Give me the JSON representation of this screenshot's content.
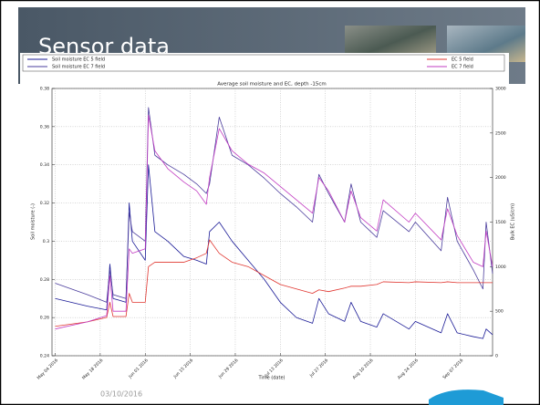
{
  "slide": {
    "title": "Sensor data",
    "date": "03/10/2016"
  },
  "chart_data": {
    "type": "line",
    "title": "Average soil moisture and EC, depth -15cm",
    "xlabel": "Time (date)",
    "ylabel": "Soil moisture (-)",
    "y2label": "Bulk EC (uS/cm)",
    "x": [
      0,
      10,
      16,
      17,
      18,
      22,
      23,
      24,
      28,
      29,
      31,
      35,
      40,
      44,
      47,
      48,
      51,
      55,
      60,
      65,
      70,
      75,
      80,
      82,
      85,
      90,
      92,
      95,
      100,
      102,
      110,
      112,
      120,
      122,
      125,
      130,
      133,
      134,
      136
    ],
    "xlim": [
      -1,
      136
    ],
    "xticks": [
      {
        "value": 0,
        "label": "May 04 2016"
      },
      {
        "value": 14,
        "label": "May 18 2016"
      },
      {
        "value": 28,
        "label": "Jun 01 2016"
      },
      {
        "value": 42,
        "label": "Jun 15 2016"
      },
      {
        "value": 56,
        "label": "Jun 29 2016"
      },
      {
        "value": 70,
        "label": "Jul 13 2016"
      },
      {
        "value": 84,
        "label": "Jul 27 2016"
      },
      {
        "value": 98,
        "label": "Aug 10 2016"
      },
      {
        "value": 112,
        "label": "Aug 24 2016"
      },
      {
        "value": 126,
        "label": "Sep 07 2016"
      }
    ],
    "ylim": [
      0.24,
      0.38
    ],
    "yticks": [
      0.24,
      0.26,
      0.28,
      0.3,
      0.32,
      0.34,
      0.36,
      0.38
    ],
    "y2lim": [
      0,
      3000
    ],
    "y2ticks": [
      0,
      500,
      1000,
      1500,
      2000,
      2500,
      3000
    ],
    "grid": true,
    "series": [
      {
        "name": "Soil moisture EC 5 field",
        "color": "#1a1a96",
        "values": [
          0.27,
          0.266,
          0.264,
          0.288,
          0.27,
          0.268,
          0.32,
          0.3,
          0.29,
          0.34,
          0.305,
          0.3,
          0.292,
          0.29,
          0.288,
          0.305,
          0.31,
          0.3,
          0.29,
          0.28,
          0.268,
          0.26,
          0.257,
          0.27,
          0.262,
          0.258,
          0.268,
          0.258,
          0.255,
          0.262,
          0.254,
          0.258,
          0.252,
          0.262,
          0.252,
          0.25,
          0.249,
          0.254,
          0.251
        ]
      },
      {
        "name": "Soil moisture EC 7 field",
        "color": "#4a3c9c",
        "values": [
          0.278,
          0.272,
          0.268,
          0.285,
          0.272,
          0.27,
          0.315,
          0.305,
          0.3,
          0.37,
          0.345,
          0.34,
          0.335,
          0.33,
          0.325,
          0.33,
          0.365,
          0.345,
          0.34,
          0.333,
          0.325,
          0.318,
          0.31,
          0.335,
          0.325,
          0.31,
          0.33,
          0.31,
          0.302,
          0.316,
          0.305,
          0.31,
          0.295,
          0.323,
          0.3,
          0.285,
          0.275,
          0.31,
          0.283
        ]
      },
      {
        "name": "EC 5 field",
        "color": "#e0352f",
        "axis": "y2",
        "values": [
          330,
          380,
          430,
          600,
          440,
          440,
          700,
          600,
          600,
          1000,
          1050,
          1050,
          1050,
          1100,
          1150,
          1300,
          1150,
          1050,
          1000,
          900,
          800,
          750,
          700,
          740,
          720,
          760,
          780,
          780,
          800,
          830,
          820,
          830,
          820,
          830,
          820,
          820,
          820,
          820,
          820
        ]
      },
      {
        "name": "EC 7 field",
        "color": "#c23cc2",
        "axis": "y2",
        "values": [
          300,
          380,
          450,
          900,
          500,
          500,
          1200,
          1150,
          1200,
          2700,
          2300,
          2100,
          1950,
          1850,
          1700,
          2000,
          2550,
          2300,
          2150,
          2050,
          1900,
          1750,
          1600,
          2000,
          1850,
          1500,
          1850,
          1550,
          1400,
          1750,
          1500,
          1600,
          1300,
          1650,
          1350,
          1050,
          1000,
          1400,
          1000
        ]
      }
    ]
  }
}
